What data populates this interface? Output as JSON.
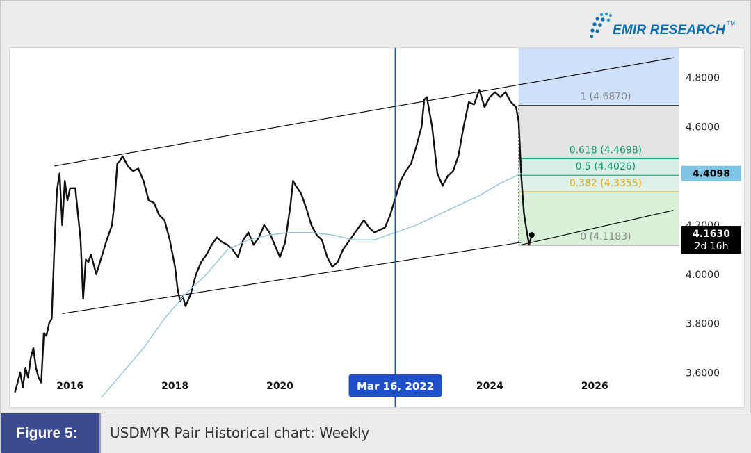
{
  "brand": {
    "name": "EMIR RESEARCH",
    "tm": "TM",
    "color": "#0b6fb3"
  },
  "figure": {
    "label": "Figure 5:",
    "caption": "USDMYR Pair Historical chart: Weekly"
  },
  "chart_data": {
    "type": "line",
    "title": "",
    "xlabel": "",
    "ylabel": "",
    "x_ticks": [
      "2016",
      "2018",
      "2020",
      "2022",
      "2024",
      "2026"
    ],
    "y_ticks": [
      "3.6000",
      "3.8000",
      "4.0000",
      "4.2000",
      "4.6000",
      "4.8000"
    ],
    "ylim": [
      3.46,
      4.92
    ],
    "xlim": [
      2014.85,
      2027.6
    ],
    "grid": false,
    "series": [
      {
        "color": "#111111",
        "points": [
          [
            2014.95,
            3.52
          ],
          [
            2015.0,
            3.56
          ],
          [
            2015.05,
            3.6
          ],
          [
            2015.1,
            3.54
          ],
          [
            2015.15,
            3.62
          ],
          [
            2015.2,
            3.58
          ],
          [
            2015.25,
            3.66
          ],
          [
            2015.3,
            3.7
          ],
          [
            2015.35,
            3.62
          ],
          [
            2015.4,
            3.58
          ],
          [
            2015.45,
            3.56
          ],
          [
            2015.5,
            3.76
          ],
          [
            2015.55,
            3.75
          ],
          [
            2015.6,
            3.8
          ],
          [
            2015.65,
            3.82
          ],
          [
            2015.7,
            4.1
          ],
          [
            2015.75,
            4.34
          ],
          [
            2015.8,
            4.41
          ],
          [
            2015.85,
            4.2
          ],
          [
            2015.9,
            4.38
          ],
          [
            2015.95,
            4.3
          ],
          [
            2016.0,
            4.35
          ],
          [
            2016.1,
            4.35
          ],
          [
            2016.2,
            4.14
          ],
          [
            2016.25,
            3.9
          ],
          [
            2016.3,
            4.06
          ],
          [
            2016.35,
            4.05
          ],
          [
            2016.4,
            4.08
          ],
          [
            2016.5,
            4.0
          ],
          [
            2016.6,
            4.07
          ],
          [
            2016.7,
            4.14
          ],
          [
            2016.8,
            4.2
          ],
          [
            2016.85,
            4.3
          ],
          [
            2016.9,
            4.45
          ],
          [
            2016.95,
            4.46
          ],
          [
            2017.0,
            4.48
          ],
          [
            2017.1,
            4.44
          ],
          [
            2017.2,
            4.42
          ],
          [
            2017.3,
            4.43
          ],
          [
            2017.4,
            4.38
          ],
          [
            2017.5,
            4.3
          ],
          [
            2017.6,
            4.29
          ],
          [
            2017.7,
            4.24
          ],
          [
            2017.8,
            4.22
          ],
          [
            2017.9,
            4.14
          ],
          [
            2018.0,
            4.03
          ],
          [
            2018.05,
            3.94
          ],
          [
            2018.1,
            3.89
          ],
          [
            2018.15,
            3.91
          ],
          [
            2018.2,
            3.87
          ],
          [
            2018.3,
            3.92
          ],
          [
            2018.4,
            4.0
          ],
          [
            2018.5,
            4.05
          ],
          [
            2018.6,
            4.08
          ],
          [
            2018.7,
            4.12
          ],
          [
            2018.8,
            4.15
          ],
          [
            2018.9,
            4.13
          ],
          [
            2019.0,
            4.12
          ],
          [
            2019.1,
            4.1
          ],
          [
            2019.2,
            4.07
          ],
          [
            2019.3,
            4.14
          ],
          [
            2019.4,
            4.17
          ],
          [
            2019.5,
            4.12
          ],
          [
            2019.6,
            4.15
          ],
          [
            2019.7,
            4.2
          ],
          [
            2019.8,
            4.17
          ],
          [
            2019.9,
            4.12
          ],
          [
            2020.0,
            4.07
          ],
          [
            2020.1,
            4.13
          ],
          [
            2020.2,
            4.28
          ],
          [
            2020.25,
            4.38
          ],
          [
            2020.3,
            4.36
          ],
          [
            2020.4,
            4.33
          ],
          [
            2020.5,
            4.27
          ],
          [
            2020.6,
            4.2
          ],
          [
            2020.7,
            4.16
          ],
          [
            2020.8,
            4.14
          ],
          [
            2020.9,
            4.07
          ],
          [
            2021.0,
            4.03
          ],
          [
            2021.1,
            4.05
          ],
          [
            2021.2,
            4.1
          ],
          [
            2021.3,
            4.13
          ],
          [
            2021.4,
            4.16
          ],
          [
            2021.5,
            4.19
          ],
          [
            2021.6,
            4.22
          ],
          [
            2021.7,
            4.19
          ],
          [
            2021.8,
            4.17
          ],
          [
            2021.9,
            4.18
          ],
          [
            2022.0,
            4.19
          ],
          [
            2022.1,
            4.24
          ],
          [
            2022.2,
            4.31
          ],
          [
            2022.3,
            4.38
          ],
          [
            2022.4,
            4.42
          ],
          [
            2022.5,
            4.45
          ],
          [
            2022.6,
            4.52
          ],
          [
            2022.7,
            4.6
          ],
          [
            2022.75,
            4.71
          ],
          [
            2022.8,
            4.72
          ],
          [
            2022.9,
            4.6
          ],
          [
            2023.0,
            4.41
          ],
          [
            2023.1,
            4.36
          ],
          [
            2023.2,
            4.4
          ],
          [
            2023.3,
            4.42
          ],
          [
            2023.4,
            4.48
          ],
          [
            2023.5,
            4.6
          ],
          [
            2023.6,
            4.7
          ],
          [
            2023.7,
            4.69
          ],
          [
            2023.8,
            4.75
          ],
          [
            2023.9,
            4.68
          ],
          [
            2024.0,
            4.72
          ],
          [
            2024.1,
            4.74
          ],
          [
            2024.2,
            4.72
          ],
          [
            2024.3,
            4.74
          ],
          [
            2024.4,
            4.7
          ],
          [
            2024.5,
            4.68
          ],
          [
            2024.55,
            4.62
          ],
          [
            2024.6,
            4.4
          ],
          [
            2024.65,
            4.25
          ],
          [
            2024.7,
            4.18
          ],
          [
            2024.75,
            4.12
          ],
          [
            2024.8,
            4.16
          ]
        ]
      },
      {
        "color": "#8fc4d9",
        "points": [
          [
            2016.6,
            3.5
          ],
          [
            2017.0,
            3.6
          ],
          [
            2017.4,
            3.7
          ],
          [
            2017.8,
            3.82
          ],
          [
            2018.2,
            3.92
          ],
          [
            2018.6,
            4.0
          ],
          [
            2019.0,
            4.1
          ],
          [
            2019.4,
            4.14
          ],
          [
            2019.8,
            4.16
          ],
          [
            2020.2,
            4.17
          ],
          [
            2020.6,
            4.17
          ],
          [
            2021.0,
            4.16
          ],
          [
            2021.4,
            4.14
          ],
          [
            2021.8,
            4.14
          ],
          [
            2022.2,
            4.17
          ],
          [
            2022.6,
            4.2
          ],
          [
            2023.0,
            4.24
          ],
          [
            2023.4,
            4.28
          ],
          [
            2023.8,
            4.32
          ],
          [
            2024.2,
            4.37
          ],
          [
            2024.6,
            4.41
          ]
        ]
      }
    ],
    "trendlines": [
      [
        [
          2015.7,
          4.44
        ],
        [
          2027.5,
          4.88
        ]
      ],
      [
        [
          2015.85,
          3.84
        ],
        [
          2024.6,
          4.13
        ]
      ],
      [
        [
          2024.6,
          4.12
        ],
        [
          2027.5,
          4.26
        ]
      ]
    ],
    "vertical_marker": {
      "x": 2022.2,
      "label": "Mar 16, 2022",
      "color": "#1f4fc9"
    },
    "fibonacci": {
      "x_start": 2024.55,
      "x_end": 2027.6,
      "top_value": 4.92,
      "levels": [
        {
          "ratio": "1",
          "value": 4.687,
          "label": "1 (4.6870)",
          "color": "#888888"
        },
        {
          "ratio": "0.618",
          "value": 4.4698,
          "label": "0.618 (4.4698)",
          "color": "#109a6c"
        },
        {
          "ratio": "0.5",
          "value": 4.4026,
          "label": "0.5 (4.4026)",
          "color": "#109a6c"
        },
        {
          "ratio": "0.382",
          "value": 4.3355,
          "label": "0.382 (4.3355)",
          "color": "#e8a21a"
        },
        {
          "ratio": "0",
          "value": 4.1183,
          "label": "0 (4.1183)",
          "color": "#888888"
        }
      ],
      "fills": [
        "#cfe0fb",
        "#e3e3e3",
        "#d7f0e6",
        "#dcf2e9",
        "#d9f0d9",
        "#fde6c8"
      ]
    },
    "price_tags": [
      {
        "value": 4.4098,
        "label": "4.4098",
        "bg": "#7ec4e6",
        "fg": "#000000"
      },
      {
        "value": 4.163,
        "label": "4.1630",
        "sub": "2d 16h",
        "bg": "#000000",
        "fg": "#ffffff"
      }
    ]
  }
}
